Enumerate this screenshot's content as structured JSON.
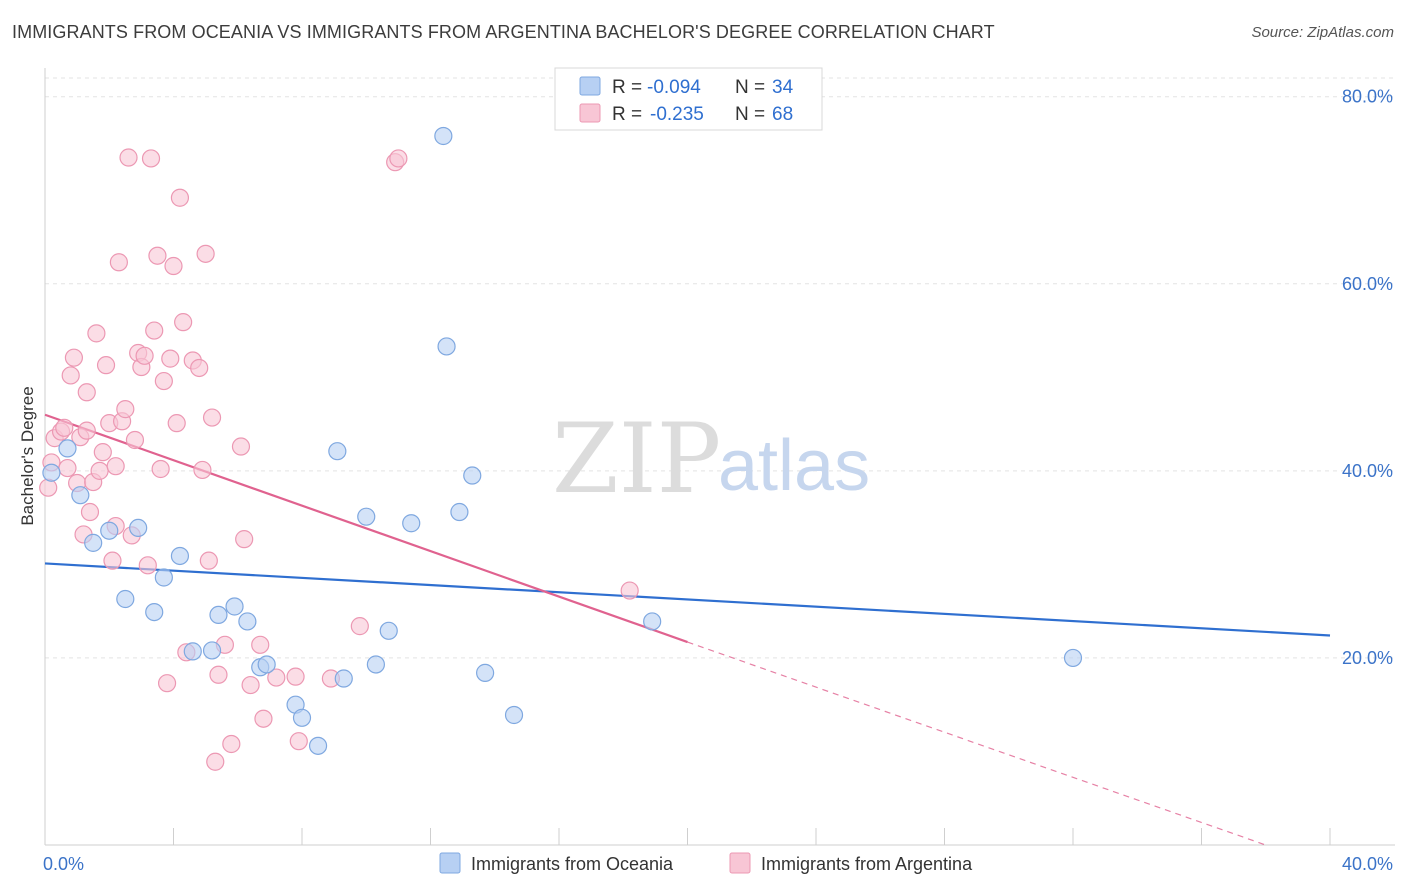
{
  "header": {
    "title": "IMMIGRANTS FROM OCEANIA VS IMMIGRANTS FROM ARGENTINA BACHELOR'S DEGREE CORRELATION CHART",
    "source": "Source: ZipAtlas.com"
  },
  "watermark": {
    "zip": "ZIP",
    "atlas": "atlas"
  },
  "colors": {
    "oceania_fill": "#b7d0f3",
    "oceania_stroke": "#7fa8e0",
    "oceania_line": "#2f6fd0",
    "argentina_fill": "#f8c6d5",
    "argentina_stroke": "#ec98b3",
    "argentina_line": "#e0628f"
  },
  "legend": {
    "rows": [
      {
        "r_label": "R =",
        "r_value": "-0.094",
        "n_label": "N =",
        "n_value": "34"
      },
      {
        "r_label": "R =",
        "r_value": "-0.235",
        "n_label": "N =",
        "n_value": "68"
      }
    ]
  },
  "chart_data": {
    "type": "scatter",
    "ylabel": "Bachelor's Degree",
    "x_ticks": [
      "0.0%",
      "40.0%"
    ],
    "y_ticks": [
      "20.0%",
      "40.0%",
      "60.0%",
      "80.0%"
    ],
    "xlim": [
      0,
      40
    ],
    "ylim": [
      0,
      82
    ],
    "grid": true,
    "legend_placement": "top-center",
    "series": [
      {
        "name": "Immigrants from Oceania",
        "points": [
          [
            0.2,
            39.8
          ],
          [
            0.7,
            42.4
          ],
          [
            1.1,
            37.4
          ],
          [
            1.5,
            32.3
          ],
          [
            2.0,
            33.6
          ],
          [
            2.9,
            33.9
          ],
          [
            2.5,
            26.3
          ],
          [
            3.4,
            24.9
          ],
          [
            3.7,
            28.6
          ],
          [
            4.2,
            30.9
          ],
          [
            4.6,
            20.7
          ],
          [
            5.2,
            20.8
          ],
          [
            5.4,
            24.6
          ],
          [
            5.9,
            25.5
          ],
          [
            6.3,
            23.9
          ],
          [
            6.7,
            19.0
          ],
          [
            6.9,
            19.3
          ],
          [
            7.8,
            15.0
          ],
          [
            8.0,
            13.6
          ],
          [
            8.5,
            10.6
          ],
          [
            9.1,
            42.1
          ],
          [
            9.3,
            17.8
          ],
          [
            10.0,
            35.1
          ],
          [
            10.3,
            19.3
          ],
          [
            10.7,
            22.9
          ],
          [
            11.4,
            34.4
          ],
          [
            12.4,
            75.8
          ],
          [
            12.5,
            53.3
          ],
          [
            12.9,
            35.6
          ],
          [
            13.3,
            39.5
          ],
          [
            13.7,
            18.4
          ],
          [
            14.6,
            13.9
          ],
          [
            18.9,
            23.9
          ],
          [
            32.0,
            20.0
          ]
        ],
        "trend": {
          "x": [
            0,
            40
          ],
          "y": [
            30.1,
            22.4
          ]
        }
      },
      {
        "name": "Immigrants from Argentina",
        "points": [
          [
            0.1,
            38.2
          ],
          [
            0.2,
            40.9
          ],
          [
            0.3,
            43.5
          ],
          [
            0.5,
            44.2
          ],
          [
            0.6,
            44.6
          ],
          [
            0.7,
            40.3
          ],
          [
            0.8,
            50.2
          ],
          [
            0.9,
            52.1
          ],
          [
            1.0,
            38.7
          ],
          [
            1.1,
            43.6
          ],
          [
            1.2,
            33.2
          ],
          [
            1.3,
            48.4
          ],
          [
            1.4,
            35.6
          ],
          [
            1.5,
            38.8
          ],
          [
            1.6,
            54.7
          ],
          [
            1.7,
            40.0
          ],
          [
            1.8,
            42.0
          ],
          [
            1.9,
            51.3
          ],
          [
            2.0,
            45.1
          ],
          [
            2.1,
            30.4
          ],
          [
            2.2,
            34.1
          ],
          [
            2.3,
            62.3
          ],
          [
            2.4,
            45.3
          ],
          [
            2.5,
            46.6
          ],
          [
            2.6,
            73.5
          ],
          [
            2.7,
            33.1
          ],
          [
            2.8,
            43.3
          ],
          [
            2.9,
            52.6
          ],
          [
            3.0,
            51.1
          ],
          [
            3.1,
            52.3
          ],
          [
            3.2,
            29.9
          ],
          [
            3.3,
            73.4
          ],
          [
            3.4,
            55.0
          ],
          [
            3.5,
            63.0
          ],
          [
            3.6,
            40.2
          ],
          [
            3.7,
            49.6
          ],
          [
            3.8,
            17.3
          ],
          [
            3.9,
            52.0
          ],
          [
            4.0,
            61.9
          ],
          [
            4.1,
            45.1
          ],
          [
            4.2,
            69.2
          ],
          [
            4.3,
            55.9
          ],
          [
            4.4,
            20.6
          ],
          [
            4.6,
            51.8
          ],
          [
            4.8,
            51.0
          ],
          [
            4.9,
            40.1
          ],
          [
            5.0,
            63.2
          ],
          [
            5.1,
            30.4
          ],
          [
            5.2,
            45.7
          ],
          [
            5.3,
            8.9
          ],
          [
            5.4,
            18.2
          ],
          [
            5.6,
            21.4
          ],
          [
            5.8,
            10.8
          ],
          [
            6.1,
            42.6
          ],
          [
            6.2,
            32.7
          ],
          [
            6.4,
            17.1
          ],
          [
            6.7,
            21.4
          ],
          [
            6.8,
            13.5
          ],
          [
            7.8,
            18.0
          ],
          [
            7.9,
            11.1
          ],
          [
            8.9,
            17.8
          ],
          [
            9.8,
            23.4
          ],
          [
            10.9,
            73.0
          ],
          [
            11.0,
            73.4
          ],
          [
            18.2,
            27.2
          ],
          [
            7.2,
            17.9
          ],
          [
            1.3,
            44.3
          ],
          [
            2.2,
            40.5
          ]
        ],
        "trend": {
          "x": [
            0,
            20
          ],
          "y": [
            46.0,
            21.7
          ]
        },
        "trend_dashed": {
          "x": [
            20,
            38
          ],
          "y": [
            21.7,
            0.0
          ]
        }
      }
    ]
  }
}
